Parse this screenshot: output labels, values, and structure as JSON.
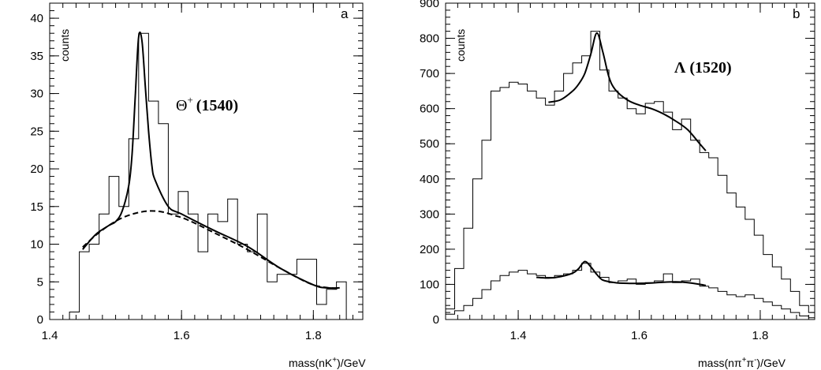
{
  "chart_data": [
    {
      "type": "histogram",
      "panel": "a",
      "ylabel": "counts",
      "xlabel": {
        "text": "mass(nK",
        "sup": "+",
        "suffix": ")/GeV"
      },
      "annotation": {
        "symbol": "Θ",
        "sup": "+",
        "text": "(1540)"
      },
      "xlim": [
        1.4,
        1.875
      ],
      "ylim": [
        0,
        42
      ],
      "xticks": [
        1.4,
        1.6,
        1.8
      ],
      "yticks": [
        0,
        5,
        10,
        15,
        20,
        25,
        30,
        35,
        40
      ],
      "bin_edges": [
        1.43,
        1.445,
        1.46,
        1.475,
        1.49,
        1.505,
        1.52,
        1.535,
        1.55,
        1.565,
        1.58,
        1.595,
        1.61,
        1.625,
        1.64,
        1.655,
        1.67,
        1.685,
        1.7,
        1.715,
        1.73,
        1.745,
        1.76,
        1.775,
        1.79,
        1.805,
        1.82,
        1.835,
        1.85
      ],
      "counts": [
        1,
        9,
        10,
        14,
        19,
        15,
        24,
        38,
        29,
        26,
        14,
        17,
        14,
        9,
        14,
        13,
        16,
        10,
        9,
        14,
        5,
        6,
        6,
        8,
        8,
        2,
        4,
        5
      ],
      "fit_curves": [
        {
          "style": "solid",
          "x": [
            1.45,
            1.47,
            1.49,
            1.5,
            1.51,
            1.52,
            1.525,
            1.53,
            1.535,
            1.54,
            1.545,
            1.55,
            1.555,
            1.56,
            1.58,
            1.6,
            1.65,
            1.7,
            1.75,
            1.8,
            1.82,
            1.84
          ],
          "y": [
            9.3,
            11.3,
            12.5,
            13.0,
            14.4,
            17.8,
            22.0,
            30.0,
            37.5,
            37.0,
            31.0,
            25.0,
            20.5,
            18.5,
            15.0,
            14.0,
            11.8,
            9.7,
            6.8,
            4.6,
            4.2,
            4.2
          ]
        },
        {
          "style": "dashed",
          "x": [
            1.45,
            1.47,
            1.49,
            1.51,
            1.53,
            1.55,
            1.57,
            1.59,
            1.61,
            1.65,
            1.7,
            1.75,
            1.8,
            1.84
          ],
          "y": [
            9.6,
            11.2,
            12.5,
            13.5,
            14.1,
            14.4,
            14.3,
            13.8,
            13.2,
            11.5,
            9.3,
            6.8,
            4.6,
            4.1
          ]
        }
      ]
    },
    {
      "type": "histogram",
      "panel": "b",
      "ylabel": "counts",
      "xlabel": {
        "text": "mass(nπ",
        "sup1": "+",
        "mid": "π",
        "sup2": "-",
        "suffix": ")/GeV"
      },
      "annotation": {
        "text": "Λ (1520)"
      },
      "xlim": [
        1.28,
        1.89
      ],
      "ylim": [
        0,
        900
      ],
      "xticks": [
        1.4,
        1.6,
        1.8
      ],
      "yticks": [
        0,
        100,
        200,
        300,
        400,
        500,
        600,
        700,
        800,
        900
      ],
      "series": [
        {
          "name": "upper",
          "bin_edges": [
            1.28,
            1.295,
            1.31,
            1.325,
            1.34,
            1.355,
            1.37,
            1.385,
            1.4,
            1.415,
            1.43,
            1.445,
            1.46,
            1.475,
            1.49,
            1.505,
            1.52,
            1.535,
            1.55,
            1.565,
            1.58,
            1.595,
            1.61,
            1.625,
            1.64,
            1.655,
            1.67,
            1.685,
            1.7,
            1.715,
            1.73,
            1.745,
            1.76,
            1.775,
            1.79,
            1.805,
            1.82,
            1.835,
            1.85,
            1.865,
            1.88,
            1.89
          ],
          "counts": [
            30,
            145,
            260,
            400,
            510,
            650,
            660,
            675,
            670,
            650,
            630,
            610,
            650,
            700,
            730,
            750,
            820,
            710,
            650,
            630,
            600,
            585,
            615,
            620,
            590,
            540,
            570,
            510,
            475,
            460,
            410,
            360,
            320,
            285,
            240,
            185,
            150,
            115,
            80,
            40,
            20
          ]
        },
        {
          "name": "lower",
          "bin_edges": [
            1.28,
            1.295,
            1.31,
            1.325,
            1.34,
            1.355,
            1.37,
            1.385,
            1.4,
            1.415,
            1.43,
            1.445,
            1.46,
            1.475,
            1.49,
            1.505,
            1.52,
            1.535,
            1.55,
            1.565,
            1.58,
            1.595,
            1.61,
            1.625,
            1.64,
            1.655,
            1.67,
            1.685,
            1.7,
            1.715,
            1.73,
            1.745,
            1.76,
            1.775,
            1.79,
            1.805,
            1.82,
            1.835,
            1.85,
            1.865,
            1.88,
            1.89
          ],
          "counts": [
            15,
            25,
            40,
            60,
            85,
            110,
            125,
            135,
            140,
            130,
            125,
            120,
            125,
            130,
            140,
            160,
            135,
            120,
            105,
            110,
            115,
            100,
            105,
            110,
            130,
            105,
            110,
            115,
            95,
            90,
            80,
            70,
            65,
            70,
            60,
            50,
            40,
            30,
            20,
            10,
            5
          ]
        }
      ],
      "fit_curves": [
        {
          "style": "solid",
          "x": [
            1.45,
            1.47,
            1.49,
            1.5,
            1.51,
            1.52,
            1.53,
            1.54,
            1.55,
            1.56,
            1.58,
            1.6,
            1.62,
            1.64,
            1.66,
            1.68,
            1.7,
            1.71
          ],
          "y": [
            618,
            625,
            650,
            670,
            700,
            755,
            815,
            760,
            690,
            655,
            625,
            610,
            600,
            585,
            565,
            540,
            500,
            480
          ]
        },
        {
          "style": "solid",
          "x": [
            1.43,
            1.45,
            1.47,
            1.49,
            1.5,
            1.51,
            1.52,
            1.53,
            1.54,
            1.56,
            1.58,
            1.6,
            1.62,
            1.64,
            1.66,
            1.68,
            1.7,
            1.71
          ],
          "y": [
            120,
            118,
            122,
            132,
            145,
            165,
            150,
            128,
            112,
            105,
            103,
            103,
            104,
            106,
            107,
            105,
            100,
            97
          ]
        }
      ]
    }
  ]
}
